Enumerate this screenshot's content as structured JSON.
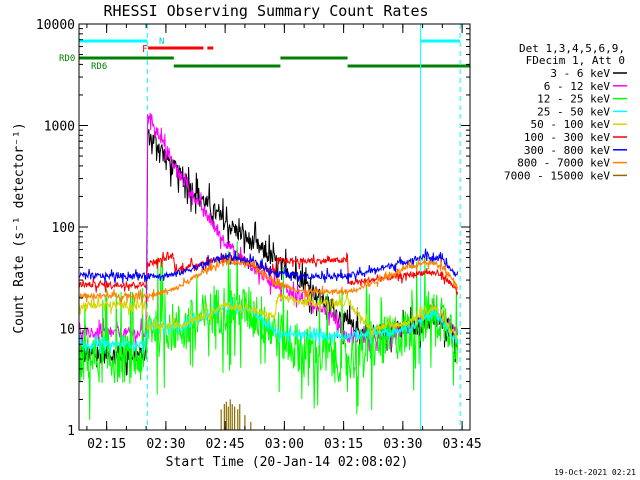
{
  "chart_data": {
    "type": "line",
    "title": "RHESSI Observing Summary Count Rates",
    "xlabel": "Start Time (20-Jan-14 02:08:02)",
    "ylabel": "Count Rate (s⁻¹ detector⁻¹)",
    "y_scale": "log",
    "ylim": [
      1,
      10000
    ],
    "xlim_minutes_after_0200": [
      8,
      107
    ],
    "x_ticks": [
      "02:15",
      "02:30",
      "02:45",
      "03:00",
      "03:15",
      "03:30",
      "03:45"
    ],
    "y_ticks": [
      "1",
      "10",
      "100",
      "1000",
      "10000"
    ],
    "timestamp": "19-Oct-2021 02:21",
    "legend": {
      "placement": "right",
      "header": [
        "Det 1,3,4,5,6,9,",
        "FDecim 1, Att 0"
      ],
      "entries": [
        {
          "label": "3 - 6 keV",
          "color": "#000000"
        },
        {
          "label": "6 - 12 keV",
          "color": "#ff00ff"
        },
        {
          "label": "12 - 25 keV",
          "color": "#00ff00"
        },
        {
          "label": "25 - 50 keV",
          "color": "#00ffff"
        },
        {
          "label": "50 - 100 keV",
          "color": "#d4d400"
        },
        {
          "label": "100 - 300 keV",
          "color": "#ff0000"
        },
        {
          "label": "300 - 800 keV",
          "color": "#0000ff"
        },
        {
          "label": "800 - 7000 keV",
          "color": "#ff8000"
        },
        {
          "label": "7000 - 15000 keV",
          "color": "#8b6c00"
        }
      ]
    },
    "flags": {
      "N_label": "N",
      "F_label": "F",
      "RD0_label": "RD0",
      "RD6_label": "RD6",
      "night_intervals": [
        [
          8,
          25.3
        ],
        [
          94.5,
          104.5
        ]
      ],
      "flare_intervals": [
        [
          25.5,
          39.5
        ],
        [
          40.5,
          42
        ]
      ],
      "rd0_intervals": [
        [
          8,
          32
        ],
        [
          59,
          76
        ]
      ],
      "rd6_intervals": [
        [
          32,
          59
        ],
        [
          76,
          107
        ]
      ],
      "vertical_lines_solid": [
        8,
        94.5
      ],
      "vertical_lines_dashed": [
        25.3,
        104.5
      ]
    },
    "series": [
      {
        "label": "3 - 6 keV",
        "color": "#000000",
        "noise": 0.25,
        "points": [
          [
            8,
            5.5
          ],
          [
            25,
            5.5
          ],
          [
            25.4,
            800
          ],
          [
            28,
            650
          ],
          [
            32,
            380
          ],
          [
            38,
            210
          ],
          [
            45,
            110
          ],
          [
            52,
            70
          ],
          [
            58,
            45
          ],
          [
            63,
            33
          ],
          [
            68,
            22
          ],
          [
            72,
            16
          ],
          [
            76,
            11
          ],
          [
            80,
            9
          ],
          [
            86,
            9.5
          ],
          [
            92,
            10
          ],
          [
            98,
            12
          ],
          [
            102,
            10.5
          ],
          [
            104,
            7
          ]
        ]
      },
      {
        "label": "6 - 12 keV",
        "color": "#ff00ff",
        "noise": 0.15,
        "points": [
          [
            8,
            9
          ],
          [
            25,
            9
          ],
          [
            25.4,
            1350
          ],
          [
            28,
            850
          ],
          [
            32,
            400
          ],
          [
            38,
            180
          ],
          [
            44,
            80
          ],
          [
            48,
            55
          ],
          [
            52,
            40
          ],
          [
            56,
            30
          ],
          [
            60,
            25
          ],
          [
            64,
            20
          ],
          [
            68,
            17
          ],
          [
            72,
            14
          ],
          [
            76,
            8
          ],
          [
            85,
            8
          ],
          [
            92,
            10
          ],
          [
            98,
            15
          ],
          [
            104,
            9
          ]
        ]
      },
      {
        "label": "12 - 25 keV",
        "color": "#00ff00",
        "noise": 0.7,
        "points": [
          [
            8,
            5
          ],
          [
            25,
            5
          ],
          [
            25.4,
            11
          ],
          [
            34,
            10
          ],
          [
            45,
            16
          ],
          [
            52,
            15
          ],
          [
            58,
            9
          ],
          [
            65,
            6
          ],
          [
            76,
            5
          ],
          [
            82,
            6.5
          ],
          [
            90,
            9
          ],
          [
            97,
            14
          ],
          [
            102,
            11
          ],
          [
            104,
            7
          ]
        ]
      },
      {
        "label": "25 - 50 keV",
        "color": "#00ffff",
        "noise": 0.1,
        "points": [
          [
            8,
            7
          ],
          [
            25,
            7
          ],
          [
            25.4,
            11
          ],
          [
            34,
            10
          ],
          [
            45,
            17
          ],
          [
            52,
            15
          ],
          [
            58,
            9
          ],
          [
            65,
            8.5
          ],
          [
            76,
            8.5
          ],
          [
            85,
            9
          ],
          [
            92,
            10
          ],
          [
            98,
            15
          ],
          [
            104,
            7
          ]
        ]
      },
      {
        "label": "50 - 100 keV",
        "color": "#d4d400",
        "noise": 0.1,
        "points": [
          [
            8,
            17
          ],
          [
            25,
            17
          ],
          [
            25.4,
            10
          ],
          [
            34,
            11
          ],
          [
            45,
            17
          ],
          [
            52,
            15
          ],
          [
            57.8,
            13
          ],
          [
            58,
            21
          ],
          [
            65,
            18
          ],
          [
            76,
            18
          ],
          [
            82,
            10
          ],
          [
            90,
            11
          ],
          [
            98,
            16
          ],
          [
            104,
            8
          ]
        ]
      },
      {
        "label": "100 - 300 keV",
        "color": "#ff0000",
        "noise": 0.08,
        "points": [
          [
            8,
            27
          ],
          [
            25,
            27
          ],
          [
            25.4,
            43
          ],
          [
            32,
            52
          ],
          [
            32.2,
            37
          ],
          [
            40,
            45
          ],
          [
            45,
            50
          ],
          [
            52,
            42
          ],
          [
            57.8,
            36
          ],
          [
            58,
            47
          ],
          [
            65,
            46
          ],
          [
            76,
            47
          ],
          [
            76.2,
            28
          ],
          [
            82,
            30
          ],
          [
            90,
            33
          ],
          [
            96,
            36
          ],
          [
            100,
            34
          ],
          [
            104,
            23
          ]
        ]
      },
      {
        "label": "300 - 800 keV",
        "color": "#0000ff",
        "noise": 0.08,
        "points": [
          [
            8,
            33
          ],
          [
            25,
            33
          ],
          [
            25.4,
            33
          ],
          [
            32,
            34
          ],
          [
            40,
            43
          ],
          [
            45,
            52
          ],
          [
            52,
            45
          ],
          [
            58,
            35
          ],
          [
            65,
            33
          ],
          [
            76,
            33
          ],
          [
            82,
            37
          ],
          [
            90,
            45
          ],
          [
            96,
            52
          ],
          [
            100,
            47
          ],
          [
            104,
            32
          ]
        ]
      },
      {
        "label": "800 - 7000 keV",
        "color": "#ff8000",
        "noise": 0.07,
        "points": [
          [
            8,
            21
          ],
          [
            25,
            21
          ],
          [
            25.4,
            21
          ],
          [
            32,
            24
          ],
          [
            40,
            37
          ],
          [
            45,
            46
          ],
          [
            52,
            42
          ],
          [
            58,
            28
          ],
          [
            65,
            23
          ],
          [
            76,
            23
          ],
          [
            82,
            28
          ],
          [
            90,
            38
          ],
          [
            96,
            45
          ],
          [
            100,
            42
          ],
          [
            104,
            26
          ]
        ]
      },
      {
        "label": "7000 - 15000 keV",
        "color": "#8b6c00",
        "noise": 0,
        "spikes": [
          [
            44,
            1.6
          ],
          [
            44.8,
            1.8
          ],
          [
            45.3,
            1.9
          ],
          [
            45.8,
            1.7
          ],
          [
            46.3,
            2.0
          ],
          [
            46.8,
            1.8
          ],
          [
            47.4,
            1.7
          ],
          [
            48.2,
            1.6
          ],
          [
            48.7,
            1.8
          ],
          [
            50,
            1.4
          ],
          [
            51.5,
            1.2
          ]
        ]
      }
    ]
  }
}
